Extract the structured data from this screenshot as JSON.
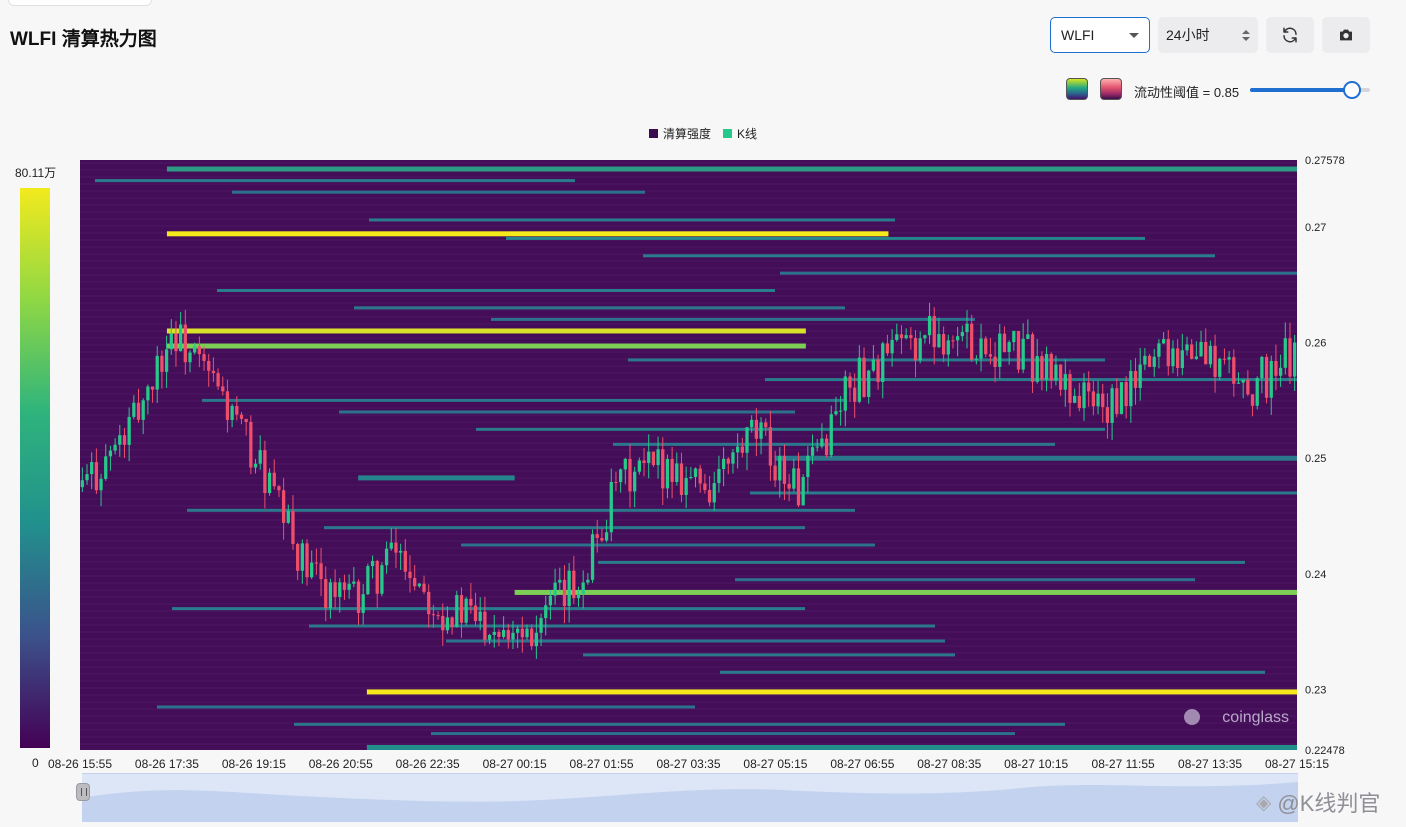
{
  "header": {
    "title": "WLFI 清算热力图"
  },
  "controls": {
    "symbol": "WLFI",
    "range": "24小时",
    "refresh_icon": "refresh-icon",
    "camera_icon": "camera-icon"
  },
  "threshold": {
    "label": "流动性阈值 = 0.85",
    "value": 0.85
  },
  "colors": {
    "accent": "#1f6fd1",
    "plot_bg": "#440d58",
    "candle_up": "#26c98a",
    "candle_down": "#ef4e6b",
    "line_yellow": "#f5e91c"
  },
  "legend": {
    "items": [
      {
        "label": "清算强度",
        "color": "#3b0a4f"
      },
      {
        "label": "K线",
        "color": "#26c98a"
      }
    ]
  },
  "colorbar": {
    "max_label": "80.11万",
    "min_label": "0"
  },
  "watermark": {
    "logo_text": "coinglass",
    "site_text": "@K线判官"
  },
  "chart_data": {
    "type": "heatmap",
    "title": "",
    "ylim": [
      0.22478,
      0.27578
    ],
    "y_ticks": [
      "0.27578",
      "0.27",
      "0.26",
      "0.25",
      "0.24",
      "0.23",
      "0.22478"
    ],
    "y_tick_values": [
      0.27578,
      0.27,
      0.26,
      0.25,
      0.24,
      0.23,
      0.22478
    ],
    "x_ticks": [
      "08-26 15:55",
      "08-26 17:35",
      "08-26 19:15",
      "08-26 20:55",
      "08-26 22:35",
      "08-27 00:15",
      "08-27 01:55",
      "08-27 03:35",
      "08-27 05:15",
      "08-27 06:55",
      "08-27 08:35",
      "08-27 10:15",
      "08-27 11:55",
      "08-27 13:35",
      "08-27 15:15"
    ],
    "colorbar_range": [
      0,
      801100
    ],
    "liquidation_levels": [
      {
        "price": 0.275,
        "start": "08-26 17:35",
        "end": "08-27 15:15",
        "intensity": 0.55
      },
      {
        "price": 0.2694,
        "start": "08-26 17:35",
        "end": "08-27 07:25",
        "intensity": 1.0
      },
      {
        "price": 0.261,
        "start": "08-26 17:35",
        "end": "08-27 05:50",
        "intensity": 0.95
      },
      {
        "price": 0.2597,
        "start": "08-26 17:35",
        "end": "08-27 05:50",
        "intensity": 0.8
      },
      {
        "price": 0.25,
        "start": "08-27 05:15",
        "end": "08-27 15:15",
        "intensity": 0.4
      },
      {
        "price": 0.2483,
        "start": "08-26 21:15",
        "end": "08-27 00:15",
        "intensity": 0.45
      },
      {
        "price": 0.2384,
        "start": "08-27 00:15",
        "end": "08-27 15:15",
        "intensity": 0.8
      },
      {
        "price": 0.2298,
        "start": "08-26 21:25",
        "end": "08-27 15:15",
        "intensity": 1.0
      },
      {
        "price": 0.225,
        "start": "08-26 21:25",
        "end": "08-27 15:15",
        "intensity": 0.5
      }
    ],
    "candles_close_approx": [
      0.2475,
      0.252,
      0.261,
      0.256,
      0.249,
      0.24,
      0.2375,
      0.242,
      0.237,
      0.236,
      0.2355,
      0.239,
      0.248,
      0.2495,
      0.2475,
      0.252,
      0.247,
      0.256,
      0.259,
      0.261,
      0.26,
      0.259,
      0.256,
      0.254,
      0.26,
      0.259,
      0.256,
      0.259
    ]
  }
}
